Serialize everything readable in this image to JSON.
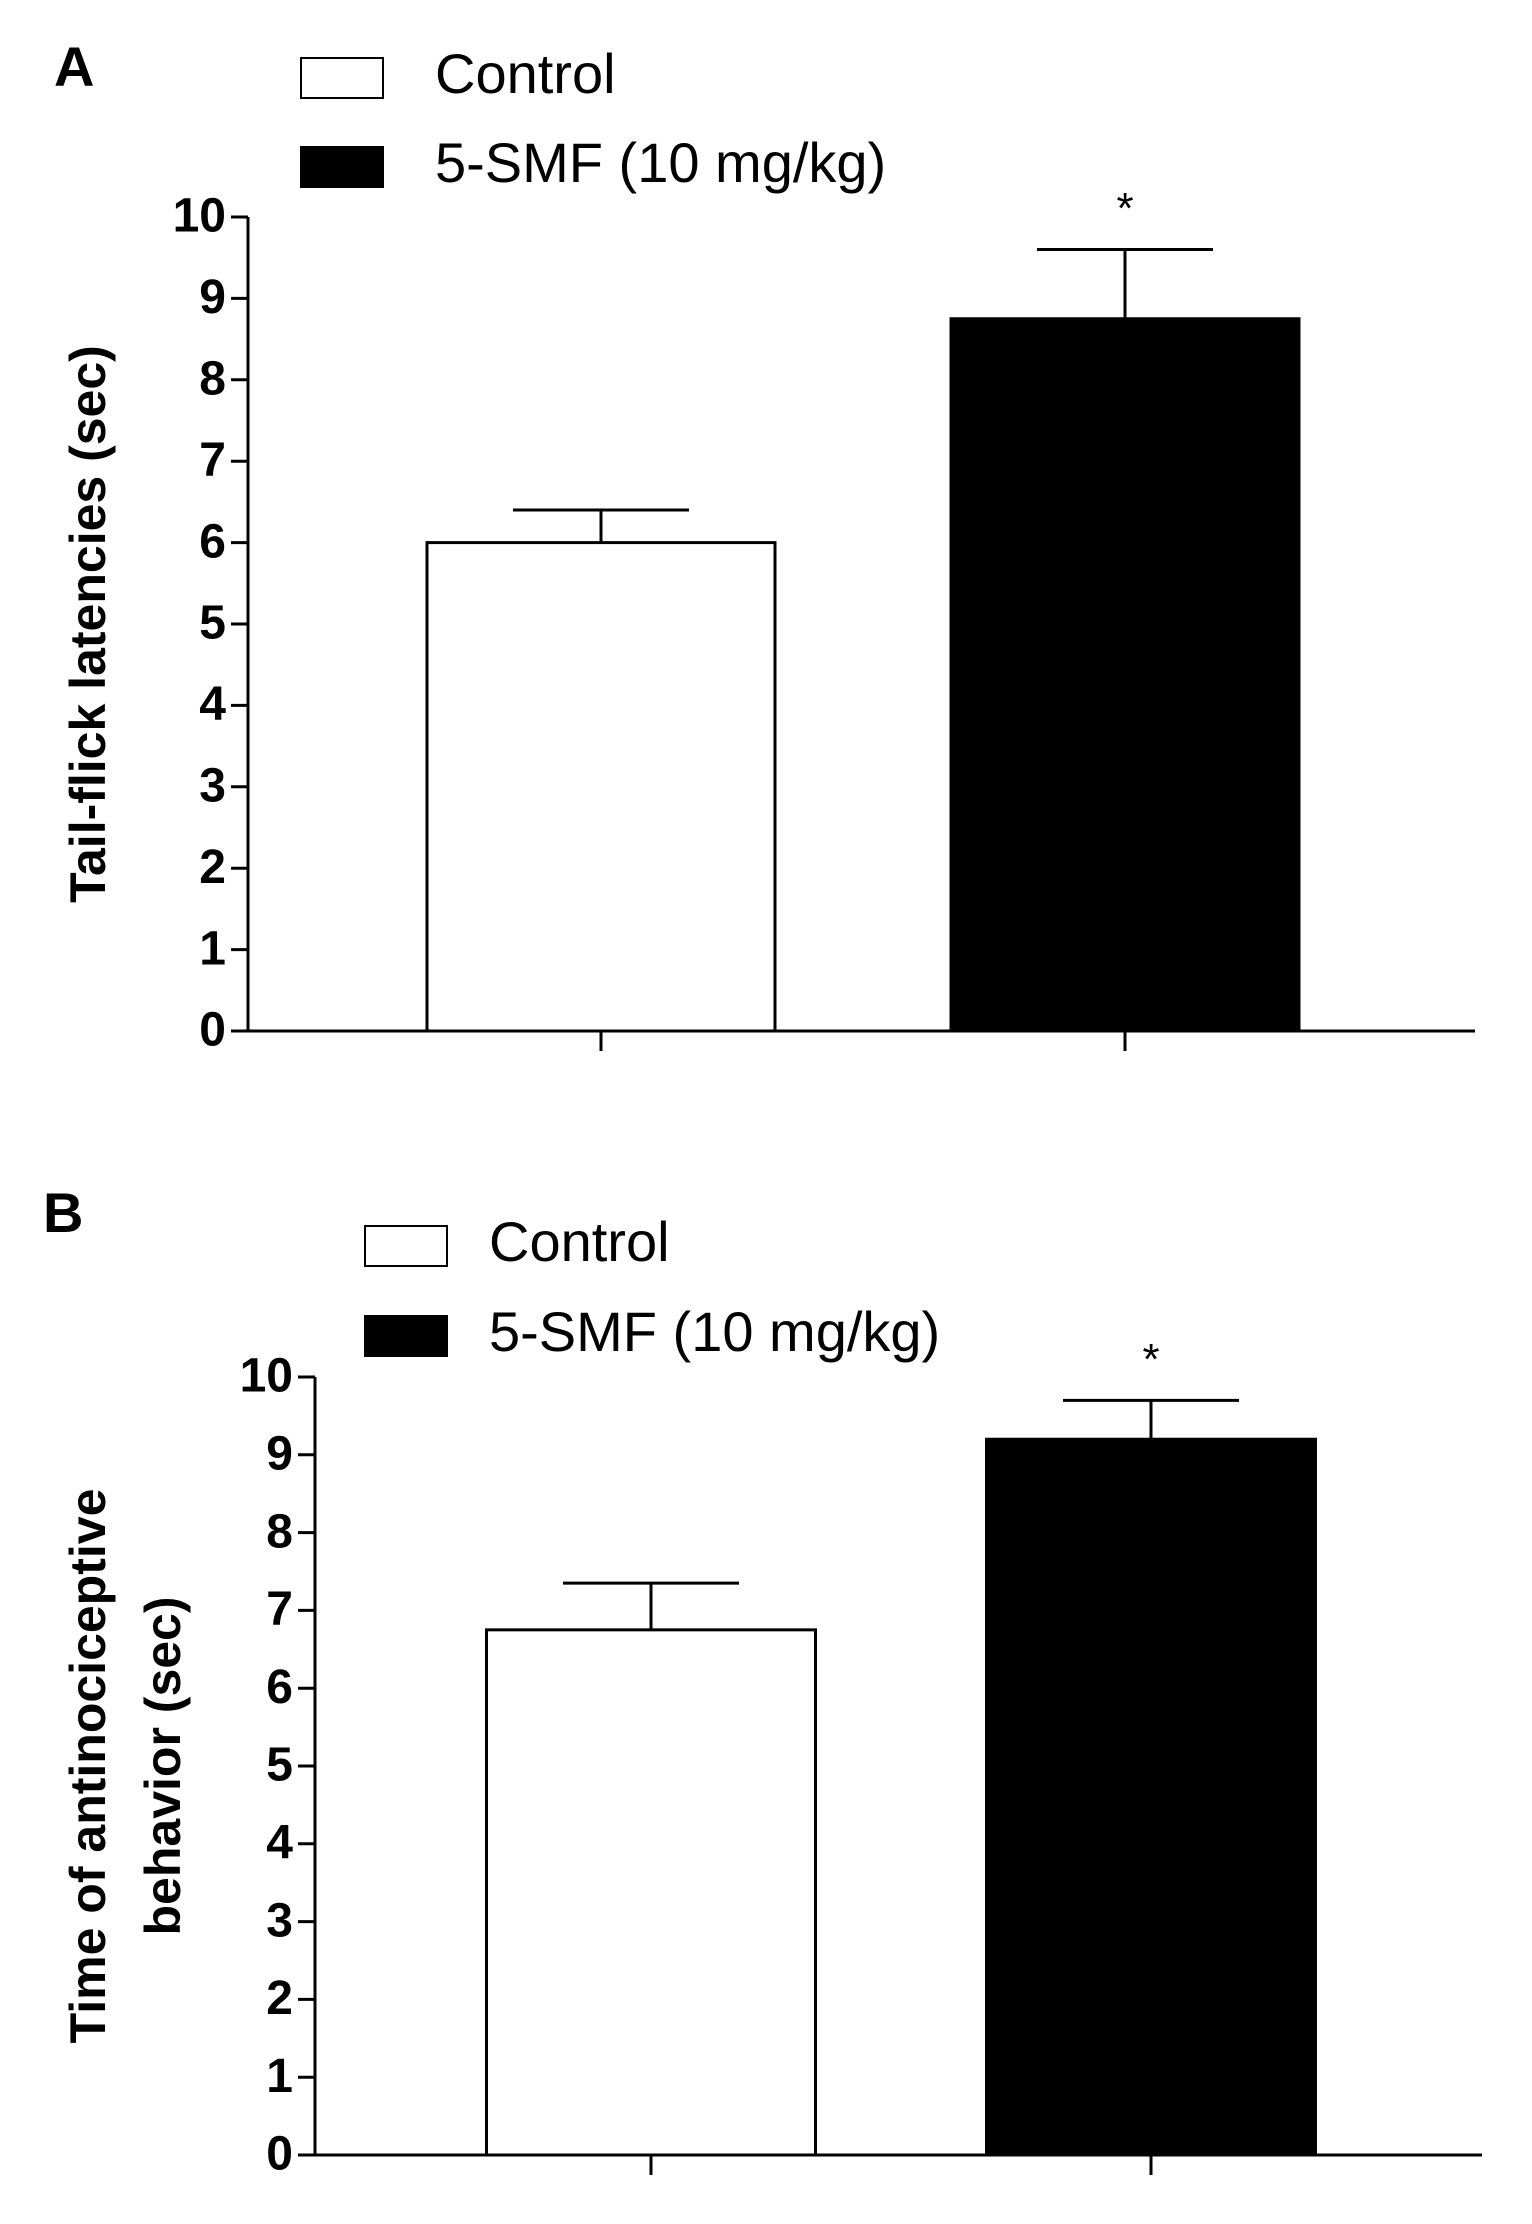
{
  "chart_data": [
    {
      "type": "bar",
      "panel": "A",
      "ylabel": "Tail-flick latencies (sec)",
      "series": [
        {
          "name": "Control",
          "color": "#ffffff",
          "values": [
            6.0
          ],
          "errors": [
            0.4
          ]
        },
        {
          "name": "5-SMF (10 mg/kg)",
          "color": "#000000",
          "values": [
            8.75
          ],
          "errors": [
            0.85
          ]
        }
      ],
      "annotation": "*",
      "ylim": [
        0,
        10
      ],
      "yticks": [
        0,
        1,
        2,
        3,
        4,
        5,
        6,
        7,
        8,
        9,
        10
      ]
    },
    {
      "type": "bar",
      "panel": "B",
      "ylabel": [
        "Time of antinociceptive",
        "behavior (sec)"
      ],
      "series": [
        {
          "name": "Control",
          "color": "#ffffff",
          "values": [
            6.75
          ],
          "errors": [
            0.6
          ]
        },
        {
          "name": "5-SMF (10 mg/kg)",
          "color": "#000000",
          "values": [
            9.2
          ],
          "errors": [
            0.5
          ]
        }
      ],
      "annotation": "*",
      "ylim": [
        0,
        10
      ],
      "yticks": [
        0,
        1,
        2,
        3,
        4,
        5,
        6,
        7,
        8,
        9,
        10
      ]
    }
  ]
}
